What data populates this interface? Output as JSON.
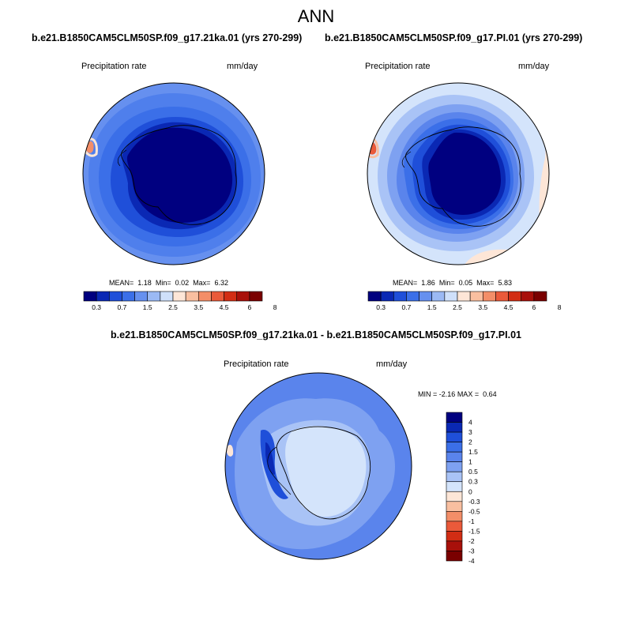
{
  "figure": {
    "title": "ANN"
  },
  "panels": [
    {
      "title": "b.e21.B1850CAM5CLM50SP.f09_g17.21ka.01 (yrs 270-299)",
      "left_label": "Precipitation rate",
      "right_label": "mm/day",
      "stats": {
        "mean_label": "MEAN=",
        "mean": "1.18",
        "min_label": "Min=",
        "min": "0.02",
        "max_label": "Max=",
        "max": "6.32"
      }
    },
    {
      "title": "b.e21.B1850CAM5CLM50SP.f09_g17.PI.01 (yrs 270-299)",
      "left_label": "Precipitation rate",
      "right_label": "mm/day",
      "stats": {
        "mean_label": "MEAN=",
        "mean": "1.86",
        "min_label": "Min=",
        "min": "0.05",
        "max_label": "Max=",
        "max": "5.83"
      }
    },
    {
      "title": "b.e21.B1850CAM5CLM50SP.f09_g17.21ka.01 - b.e21.B1850CAM5CLM50SP.f09_g17.PI.01",
      "left_label": "Precipitation rate",
      "right_label": "mm/day",
      "stats": {
        "min_label": "MIN =",
        "min": "-2.16",
        "max_label": "MAX =",
        "max": "0.64"
      }
    }
  ],
  "colorbar_abs": {
    "colors": [
      "#00007f",
      "#0a28b4",
      "#1f4fd9",
      "#3b6fe8",
      "#6690ef",
      "#9bb9f4",
      "#cfe0fa",
      "#fde6d7",
      "#f9bfa0",
      "#f38e68",
      "#ea5a3a",
      "#d22d14",
      "#a8100a",
      "#7a0000"
    ],
    "ticks": [
      "0.3",
      "0.7",
      "1.5",
      "2.5",
      "3.5",
      "4.5",
      "6",
      "8"
    ]
  },
  "colorbar_diff": {
    "colors": [
      "#00007f",
      "#0a28b4",
      "#1f4fd9",
      "#3b6fe8",
      "#5a84ec",
      "#7ea1f1",
      "#a9c3f6",
      "#d4e4fb",
      "#fde6d7",
      "#f9bfa0",
      "#f38e68",
      "#ea5a3a",
      "#d22d14",
      "#a8100a",
      "#7a0000"
    ],
    "ticks": [
      "4",
      "3",
      "2",
      "1.5",
      "1",
      "0.5",
      "0.3",
      "0",
      "-0.3",
      "-0.5",
      "-1",
      "-1.5",
      "-2",
      "-3",
      "-4"
    ]
  }
}
